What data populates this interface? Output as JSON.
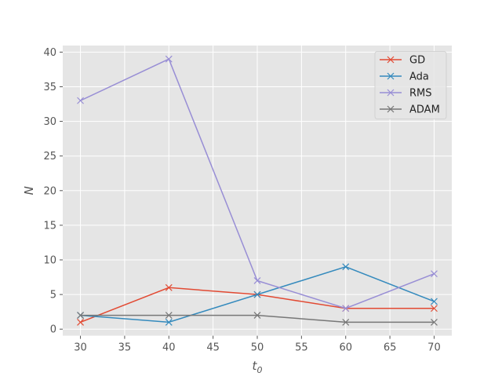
{
  "chart_data": {
    "type": "line",
    "style": "ggplot",
    "x": [
      30,
      40,
      50,
      60,
      70
    ],
    "series": [
      {
        "name": "GD",
        "values": [
          1,
          6,
          5,
          3,
          3
        ],
        "color": "#E24A33"
      },
      {
        "name": "Ada",
        "values": [
          2,
          1,
          5,
          9,
          4
        ],
        "color": "#348ABD"
      },
      {
        "name": "RMS",
        "values": [
          33,
          39,
          7,
          3,
          8
        ],
        "color": "#988ED5"
      },
      {
        "name": "ADAM",
        "values": [
          2,
          2,
          2,
          1,
          1
        ],
        "color": "#777777"
      }
    ],
    "marker": "x",
    "xlabel_base": "t",
    "xlabel_sub": "0",
    "ylabel": "N",
    "xlim": [
      28,
      72
    ],
    "ylim": [
      -0.95,
      40.95
    ],
    "xticks": [
      30,
      35,
      40,
      45,
      50,
      55,
      60,
      65,
      70
    ],
    "yticks": [
      0,
      5,
      10,
      15,
      20,
      25,
      30,
      35,
      40
    ],
    "grid": true,
    "legend_position": "top-right"
  }
}
